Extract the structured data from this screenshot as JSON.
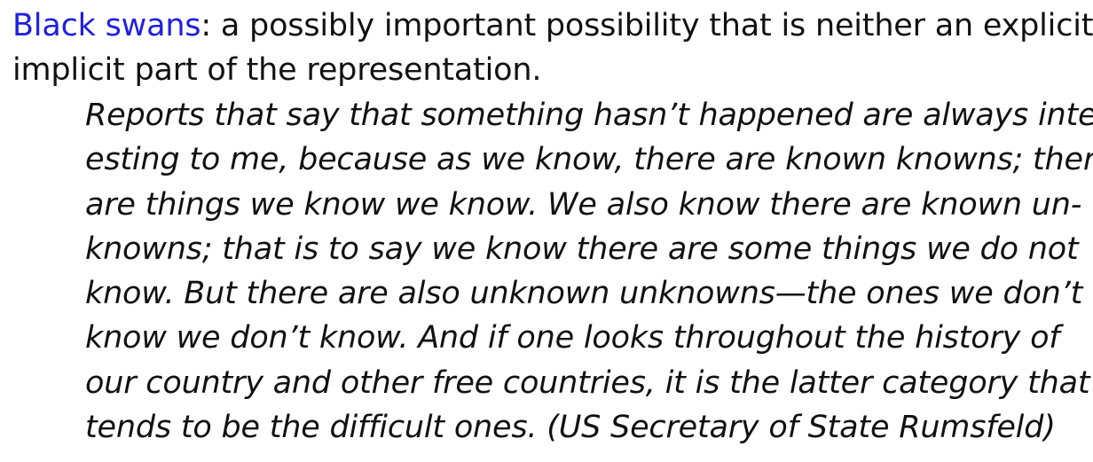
{
  "definition": {
    "term": "Black swans",
    "line1_rest": ": a possibly important possibility that is neither an explicit r",
    "line2": "implicit part of the representation."
  },
  "quote": {
    "lines": [
      "Reports that say that something hasn’t happened are always inter-",
      "esting to me, because as we know, there are known knowns; there",
      "are things we know we know. We also know there are known un-",
      "knowns; that is to say we know there are some things we do not",
      "know. But there are also unknown unknowns—the ones we don’t",
      "know we don’t know. And if one looks throughout the history of",
      "our country and other free countries, it is the latter category that",
      "tends to be the difficult ones. (US Secretary of State Rumsfeld)"
    ]
  },
  "colors": {
    "term": "#1f1fe0",
    "text": "#111111",
    "background": "#ffffff"
  }
}
